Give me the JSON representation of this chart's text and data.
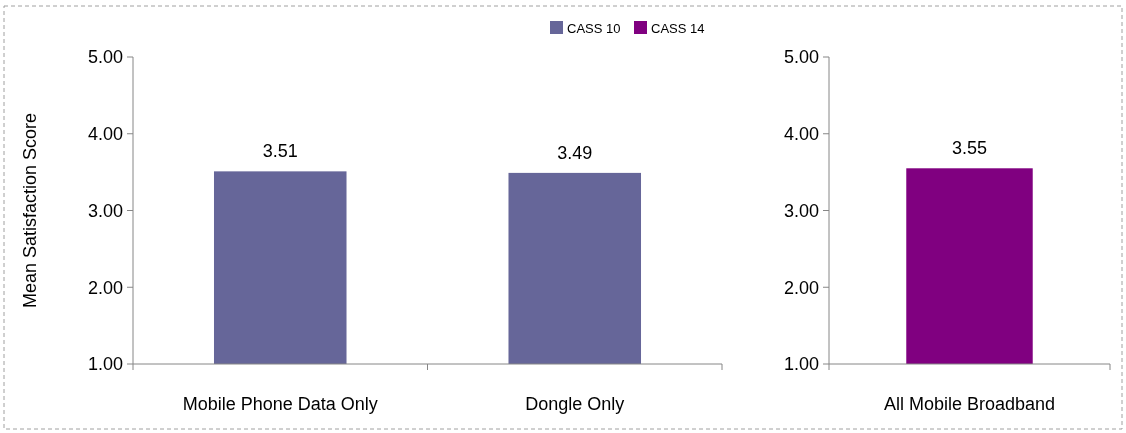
{
  "chart_data": [
    {
      "type": "bar",
      "ylabel": "Mean Satisfaction Score",
      "categories": [
        "Mobile Phone Data Only",
        "Dongle Only"
      ],
      "series": [
        {
          "name": "CASS 10",
          "color": "#666699",
          "values": [
            3.51,
            3.49
          ]
        }
      ],
      "ylim": [
        1,
        5
      ],
      "yticks": [
        {
          "value": 1,
          "label": "1.00"
        },
        {
          "value": 2,
          "label": "2.00"
        },
        {
          "value": 3,
          "label": "3.00"
        },
        {
          "value": 4,
          "label": "4.00"
        },
        {
          "value": 5,
          "label": "5.00"
        }
      ],
      "data_labels": true,
      "legend": "top"
    },
    {
      "type": "bar",
      "categories": [
        "All Mobile Broadband"
      ],
      "series": [
        {
          "name": "CASS 14",
          "color": "#800080",
          "values": [
            3.55
          ]
        }
      ],
      "ylim": [
        1,
        5
      ],
      "yticks": [
        {
          "value": 1,
          "label": "1.00"
        },
        {
          "value": 2,
          "label": "2.00"
        },
        {
          "value": 3,
          "label": "3.00"
        },
        {
          "value": 4,
          "label": "4.00"
        },
        {
          "value": 5,
          "label": "5.00"
        }
      ],
      "data_labels": true,
      "legend": "top"
    }
  ]
}
